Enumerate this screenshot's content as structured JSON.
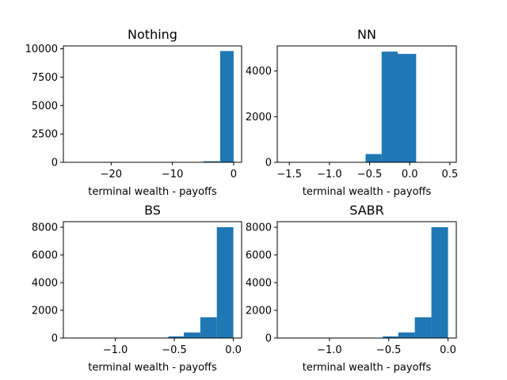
{
  "chart_data": [
    {
      "type": "bar",
      "title": "Nothing",
      "xlabel": "terminal wealth - payoffs",
      "ylabel": "",
      "xlim": [
        -27.8,
        1.3
      ],
      "ylim": [
        0,
        10250
      ],
      "xticks": [
        -20,
        -10,
        0
      ],
      "xtick_labels": [
        "−20",
        "−10",
        "0"
      ],
      "yticks": [
        0,
        2500,
        5000,
        7500,
        10000
      ],
      "ytick_labels": [
        "0",
        "2500",
        "5000",
        "7500",
        "10000"
      ],
      "bin_edges": [
        -26.5,
        -23.8,
        -21.1,
        -18.4,
        -15.7,
        -13.0,
        -10.3,
        -7.6,
        -4.9,
        -2.2,
        0.0
      ],
      "values": [
        1,
        0,
        0,
        0,
        0,
        0,
        0,
        0,
        2,
        90,
        9800
      ],
      "bars": [
        {
          "x0": -4.9,
          "x1": -2.2,
          "value": 90
        },
        {
          "x0": -2.2,
          "x1": 0.0,
          "value": 9800
        }
      ],
      "color": "#1f77b4",
      "grid": false
    },
    {
      "type": "bar",
      "title": "NN",
      "xlabel": "terminal wealth - payoffs",
      "ylabel": "",
      "xlim": [
        -1.65,
        0.58
      ],
      "ylim": [
        0,
        5100
      ],
      "xticks": [
        -1.5,
        -1.0,
        -0.5,
        0.0,
        0.5
      ],
      "xtick_labels": [
        "−1.5",
        "−1.0",
        "−0.5",
        "0.0",
        "0.5"
      ],
      "yticks": [
        0,
        2000,
        4000
      ],
      "ytick_labels": [
        "0",
        "2000",
        "4000"
      ],
      "bars": [
        {
          "x0": -1.55,
          "x1": -1.35,
          "value": 2
        },
        {
          "x0": -0.55,
          "x1": -0.35,
          "value": 360
        },
        {
          "x0": -0.35,
          "x1": -0.15,
          "value": 4850
        },
        {
          "x0": -0.15,
          "x1": 0.08,
          "value": 4750
        },
        {
          "x0": 0.08,
          "x1": 0.28,
          "value": 8
        }
      ],
      "color": "#1f77b4",
      "grid": false
    },
    {
      "type": "bar",
      "title": "BS",
      "xlabel": "terminal wealth - payoffs",
      "ylabel": "",
      "xlim": [
        -1.44,
        0.07
      ],
      "ylim": [
        0,
        8400
      ],
      "xticks": [
        -1.0,
        -0.5,
        0.0
      ],
      "xtick_labels": [
        "−1.0",
        "−0.5",
        "0.0"
      ],
      "yticks": [
        0,
        2000,
        4000,
        6000,
        8000
      ],
      "ytick_labels": [
        "0",
        "2000",
        "4000",
        "6000",
        "8000"
      ],
      "bars": [
        {
          "x0": -1.38,
          "x1": -1.24,
          "value": 2
        },
        {
          "x0": -0.69,
          "x1": -0.55,
          "value": 10
        },
        {
          "x0": -0.55,
          "x1": -0.42,
          "value": 120
        },
        {
          "x0": -0.42,
          "x1": -0.28,
          "value": 400
        },
        {
          "x0": -0.28,
          "x1": -0.14,
          "value": 1500
        },
        {
          "x0": -0.14,
          "x1": 0.0,
          "value": 8000
        }
      ],
      "color": "#1f77b4",
      "grid": false
    },
    {
      "type": "bar",
      "title": "SABR",
      "xlabel": "terminal wealth - payoffs",
      "ylabel": "",
      "xlim": [
        -1.44,
        0.07
      ],
      "ylim": [
        0,
        8400
      ],
      "xticks": [
        -1.0,
        -0.5,
        0.0
      ],
      "xtick_labels": [
        "−1.0",
        "−0.5",
        "0.0"
      ],
      "yticks": [
        0,
        2000,
        4000,
        6000,
        8000
      ],
      "ytick_labels": [
        "0",
        "2000",
        "4000",
        "6000",
        "8000"
      ],
      "bars": [
        {
          "x0": -1.38,
          "x1": -1.24,
          "value": 2
        },
        {
          "x0": -0.69,
          "x1": -0.55,
          "value": 10
        },
        {
          "x0": -0.55,
          "x1": -0.42,
          "value": 120
        },
        {
          "x0": -0.42,
          "x1": -0.28,
          "value": 400
        },
        {
          "x0": -0.28,
          "x1": -0.14,
          "value": 1500
        },
        {
          "x0": -0.14,
          "x1": 0.0,
          "value": 8000
        }
      ],
      "color": "#1f77b4",
      "grid": false
    }
  ]
}
